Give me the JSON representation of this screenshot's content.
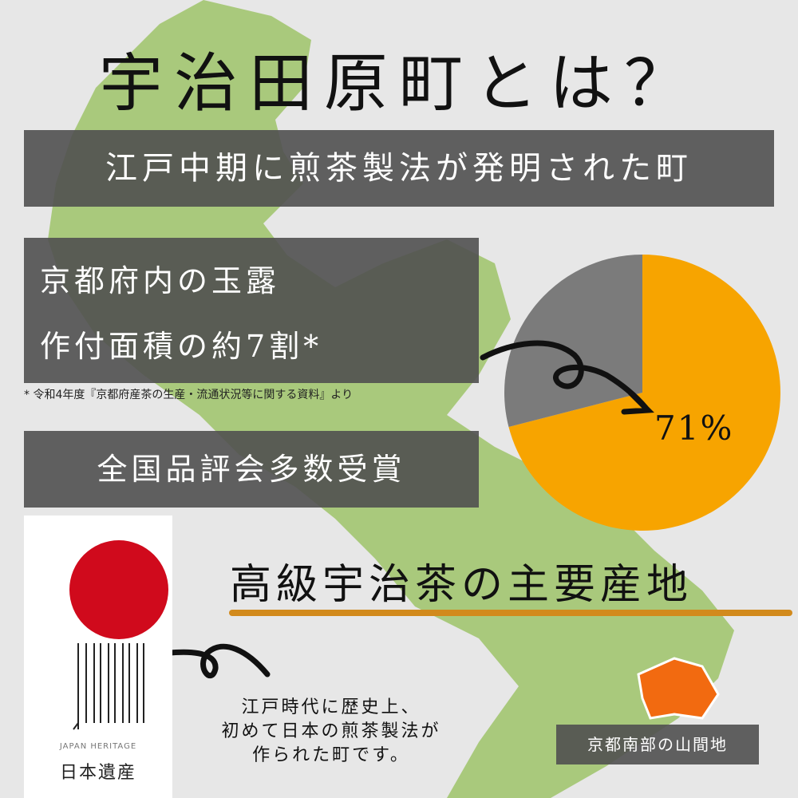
{
  "title": "宇治田原町とは？",
  "banner1": "江戸中期に煎茶製法が発明された町",
  "banner2": {
    "line1": "京都府内の玉露",
    "line2": "作付面積の約7割*"
  },
  "footnote": "* 令和4年度『京都府産茶の生産・流通状況等に関する資料』より",
  "banner3": "全国品評会多数受賞",
  "main_heading": "高級宇治茶の主要産地",
  "logo": {
    "text_en": "JAPAN HERITAGE",
    "text_jp": "日本遺産",
    "vertical_text": "JAPAN HERITAGE"
  },
  "description": {
    "line1": "江戸時代に歴史上、",
    "line2": "初めて日本の煎茶製法が",
    "line3": "作られた町です。"
  },
  "location_label": "京都南部の山間地",
  "colors": {
    "map_green": "#a9c97c",
    "pie_orange": "#f7a400",
    "pie_gray": "#7b7b7b",
    "highlight": "#f26a10",
    "underline": "#d28a1c",
    "sun_red": "#d00a1c"
  },
  "chart_data": {
    "type": "pie",
    "slices": [
      {
        "value": 71,
        "color": "#f7a400",
        "label": "71%"
      },
      {
        "value": 29,
        "color": "#7b7b7b"
      }
    ]
  }
}
